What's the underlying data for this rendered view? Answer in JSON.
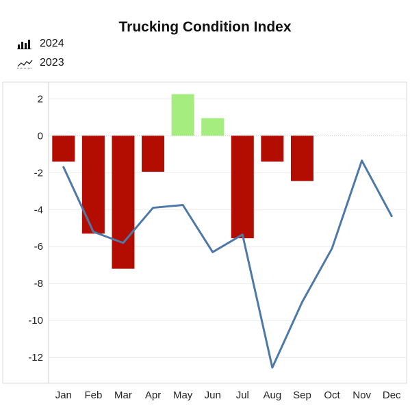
{
  "chart_data": {
    "type": "bar",
    "title": "Trucking Condition Index",
    "categories": [
      "Jan",
      "Feb",
      "Mar",
      "Apr",
      "May",
      "Jun",
      "Jul",
      "Aug",
      "Sep",
      "Oct",
      "Nov",
      "Dec"
    ],
    "series": [
      {
        "name": "2024",
        "kind": "bar",
        "values": [
          -1.4,
          -5.3,
          -7.2,
          -1.95,
          2.25,
          0.95,
          -5.55,
          -1.4,
          -2.45,
          null,
          null,
          null
        ],
        "positive_color": "#a6ed7f",
        "negative_color": "#b30d02"
      },
      {
        "name": "2023",
        "kind": "line",
        "values": [
          -1.7,
          -5.2,
          -5.8,
          -3.9,
          -3.75,
          -6.3,
          -5.35,
          -12.55,
          -9.0,
          -6.1,
          -1.35,
          -4.35
        ],
        "color": "#4e79a7"
      }
    ],
    "yticks": [
      2,
      0,
      -2,
      -4,
      -6,
      -8,
      -10,
      -12
    ],
    "ylim": [
      -13.4,
      2.9
    ],
    "xlabel": "",
    "ylabel": "",
    "grid": true,
    "legend_position": "top-left"
  }
}
